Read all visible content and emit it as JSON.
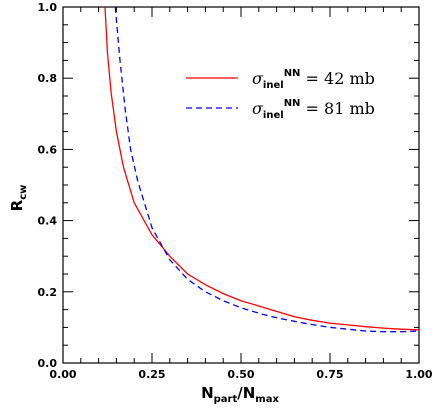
{
  "chart_data": {
    "type": "line",
    "xlabel": {
      "main": "N",
      "sub1": "part",
      "mid": "/N",
      "sub2": "max"
    },
    "ylabel": {
      "main": "R",
      "sub": "cw"
    },
    "xlim": [
      0.0,
      1.0
    ],
    "ylim": [
      0.0,
      1.0
    ],
    "x_ticks": [
      "0.00",
      "0.25",
      "0.50",
      "0.75",
      "1.00"
    ],
    "y_ticks": [
      "0.0",
      "0.2",
      "0.4",
      "0.6",
      "0.8",
      "1.0"
    ],
    "grid": false,
    "legend_position": "top-right",
    "series": [
      {
        "name": "σinelNN = 42 mb",
        "legend": {
          "symbol": "σ",
          "sub": "inel",
          "sup": "NN",
          "rest": " = 42 mb"
        },
        "color": "#ff0000",
        "style": "solid",
        "points": [
          [
            0.118,
            1.0
          ],
          [
            0.125,
            0.87
          ],
          [
            0.135,
            0.76
          ],
          [
            0.15,
            0.65
          ],
          [
            0.17,
            0.55
          ],
          [
            0.2,
            0.45
          ],
          [
            0.25,
            0.36
          ],
          [
            0.3,
            0.3
          ],
          [
            0.35,
            0.25
          ],
          [
            0.4,
            0.22
          ],
          [
            0.45,
            0.195
          ],
          [
            0.5,
            0.175
          ],
          [
            0.55,
            0.16
          ],
          [
            0.6,
            0.145
          ],
          [
            0.65,
            0.13
          ],
          [
            0.7,
            0.12
          ],
          [
            0.75,
            0.112
          ],
          [
            0.8,
            0.107
          ],
          [
            0.85,
            0.102
          ],
          [
            0.9,
            0.098
          ],
          [
            0.95,
            0.095
          ],
          [
            1.0,
            0.093
          ]
        ]
      },
      {
        "name": "σinelNN = 81 mb",
        "legend": {
          "symbol": "σ",
          "sub": "inel",
          "sup": "NN",
          "rest": " = 81 mb"
        },
        "color": "#0000ff",
        "style": "dashed",
        "points": [
          [
            0.147,
            1.0
          ],
          [
            0.16,
            0.85
          ],
          [
            0.175,
            0.71
          ],
          [
            0.19,
            0.6
          ],
          [
            0.21,
            0.51
          ],
          [
            0.25,
            0.38
          ],
          [
            0.3,
            0.29
          ],
          [
            0.35,
            0.235
          ],
          [
            0.4,
            0.2
          ],
          [
            0.45,
            0.175
          ],
          [
            0.5,
            0.155
          ],
          [
            0.55,
            0.14
          ],
          [
            0.6,
            0.127
          ],
          [
            0.65,
            0.117
          ],
          [
            0.7,
            0.108
          ],
          [
            0.75,
            0.1
          ],
          [
            0.8,
            0.095
          ],
          [
            0.85,
            0.09
          ],
          [
            0.9,
            0.088
          ],
          [
            0.95,
            0.088
          ],
          [
            1.0,
            0.09
          ]
        ]
      }
    ]
  }
}
